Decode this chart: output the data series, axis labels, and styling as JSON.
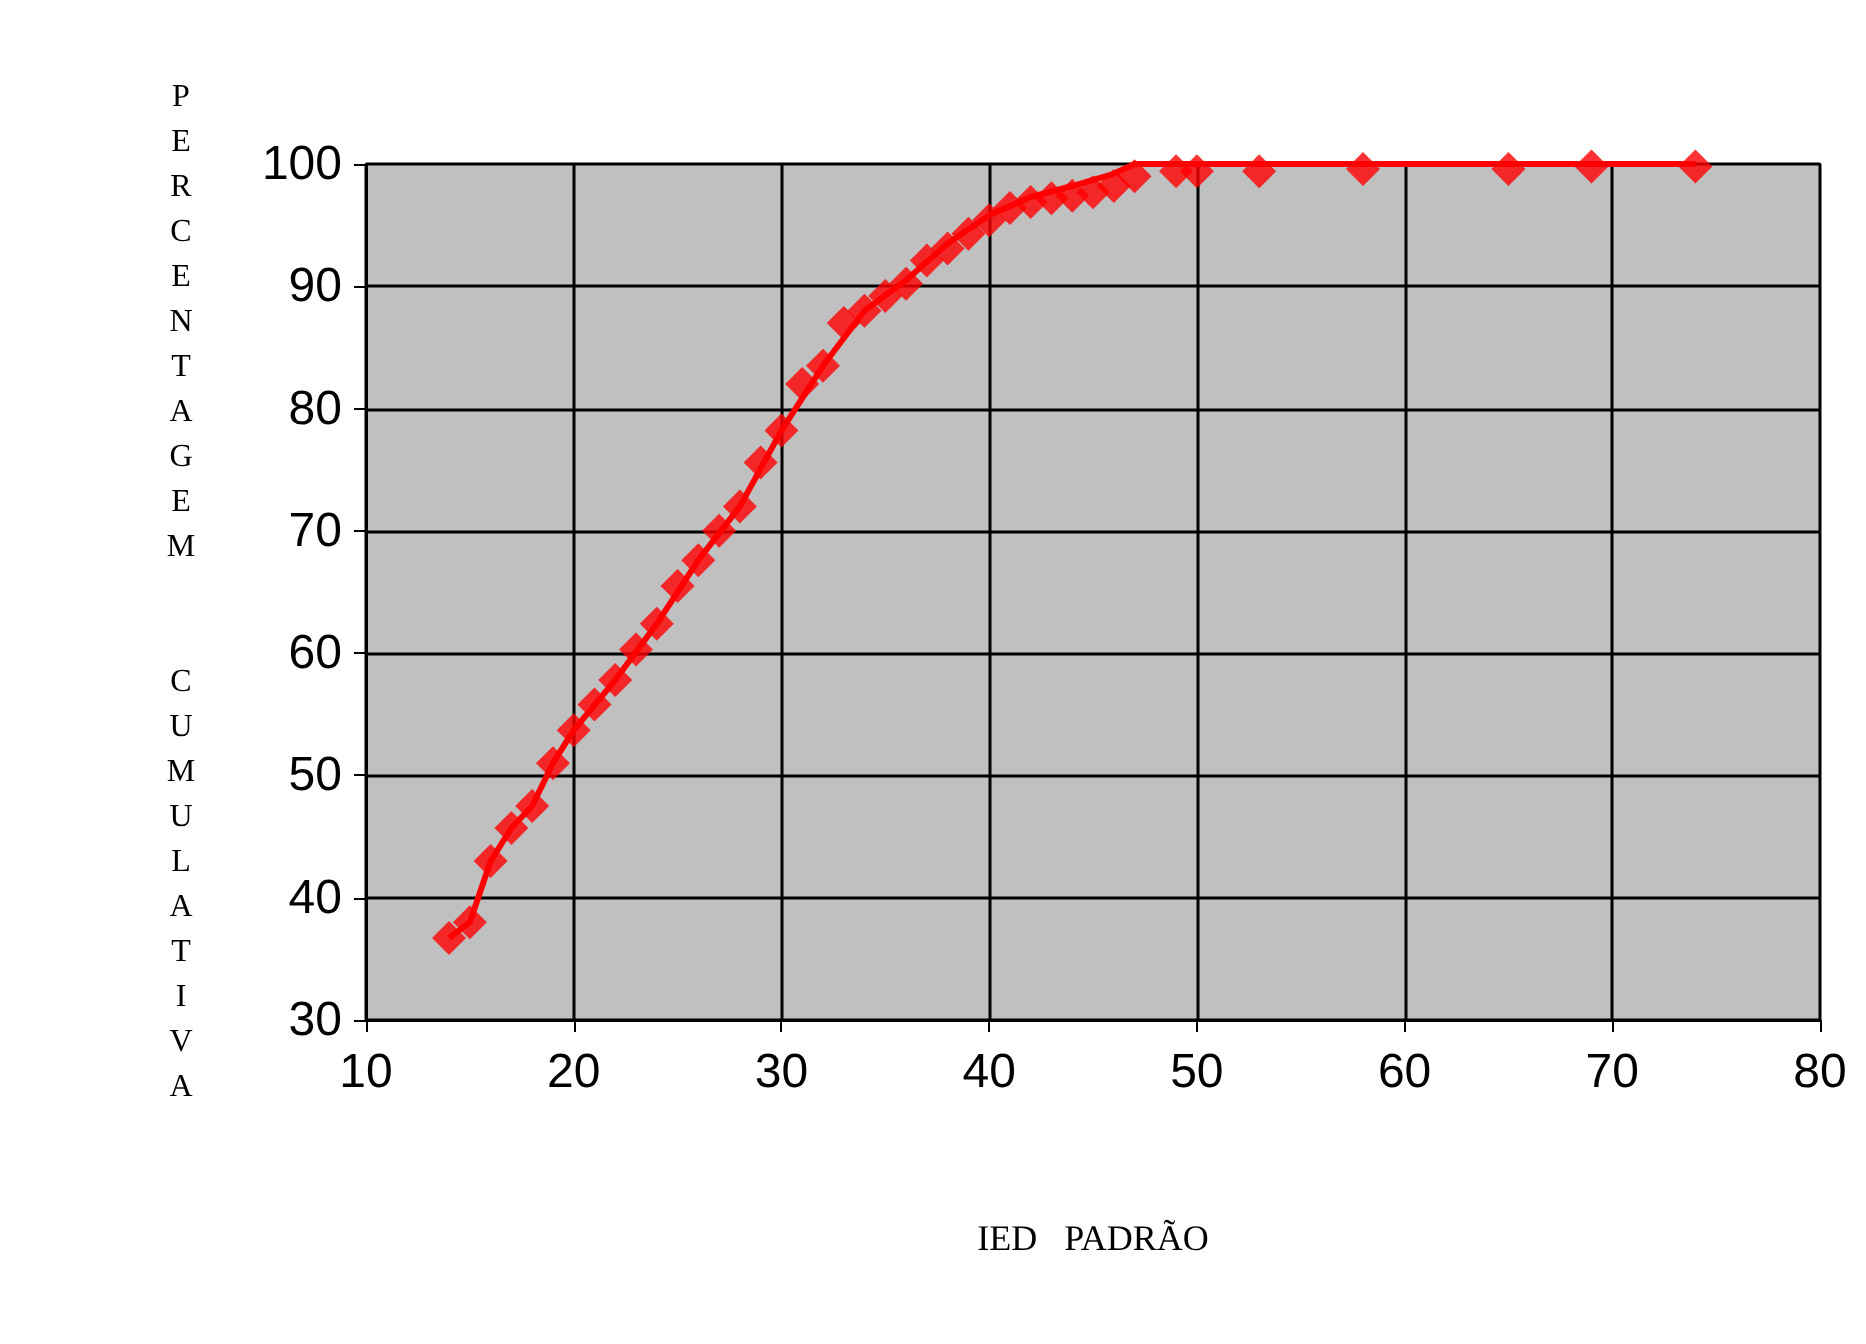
{
  "chart_data": {
    "type": "scatter",
    "xlabel": "IED   PADRÃO",
    "ylabel": "PERCENTAGEM  CUMULATIVA",
    "xlim": [
      10,
      80
    ],
    "xticks": [
      10,
      20,
      30,
      40,
      50,
      60,
      70,
      80
    ],
    "ylim": [
      30,
      100
    ],
    "yticks": [
      30,
      40,
      50,
      60,
      70,
      80,
      90,
      100
    ],
    "grid": true,
    "series": [
      {
        "color": "#ff0000",
        "marker": "diamond",
        "x": [
          14,
          15,
          16,
          17,
          18,
          19,
          20,
          21,
          22,
          23,
          24,
          25,
          26,
          27,
          28,
          29,
          30,
          31,
          32,
          33,
          34,
          35,
          36,
          37,
          38,
          39,
          40,
          41,
          42,
          43,
          44,
          45,
          46,
          47,
          49,
          50,
          53,
          58,
          65,
          69,
          74
        ],
        "values": [
          36.7,
          38,
          43,
          45.7,
          47.5,
          51,
          53.7,
          55.8,
          57.8,
          60.3,
          62.4,
          65.5,
          67.6,
          70,
          72,
          75.6,
          78.2,
          82,
          83.5,
          87,
          88,
          89.2,
          90.2,
          92.1,
          93.1,
          94.3,
          95.4,
          96.4,
          96.9,
          97.2,
          97.4,
          97.7,
          98.2,
          99,
          99.4,
          99.4,
          99.4,
          99.6,
          99.6,
          99.8,
          99.8
        ]
      },
      {
        "type": "line",
        "color": "#ff0000",
        "line_style": "solid",
        "marker": "none",
        "x": [
          14,
          15,
          16,
          17,
          18,
          19,
          20,
          22,
          24,
          26,
          28,
          30,
          32,
          34,
          36,
          38,
          40,
          42,
          44,
          46,
          47,
          48,
          56,
          67,
          68,
          74
        ],
        "values": [
          36.7,
          38,
          43,
          45.7,
          47.5,
          51,
          53.7,
          57.8,
          62.4,
          67.6,
          72,
          78.2,
          83.5,
          88,
          90.5,
          93.5,
          95.8,
          97.3,
          98.2,
          99.2,
          100,
          100,
          100,
          100,
          100,
          100
        ]
      }
    ]
  }
}
